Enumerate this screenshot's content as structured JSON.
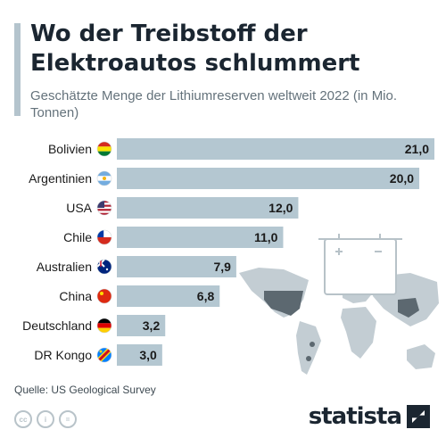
{
  "title": "Wo der Treibstoff der Elektroautos schlummert",
  "subtitle": "Geschätzte Menge der Lithiumreserven weltweit 2022 (in Mio. Tonnen)",
  "source": "Quelle: US Geological Survey",
  "brand": "statista",
  "license_icons": [
    "cc-icon",
    "person-icon",
    "equals-icon"
  ],
  "license_glyphs": [
    "cc",
    "i",
    "="
  ],
  "colors": {
    "bar": "#b4c7d1",
    "title": "#1b2631",
    "map": "#c3cdd3",
    "map_highlight": "#5c6870"
  },
  "chart_data": {
    "type": "bar",
    "orientation": "horizontal",
    "title": "Wo der Treibstoff der Elektroautos schlummert",
    "subtitle": "Geschätzte Menge der Lithiumreserven weltweit 2022 (in Mio. Tonnen)",
    "categories": [
      "Bolivien",
      "Argentinien",
      "USA",
      "Chile",
      "Australien",
      "China",
      "Deutschland",
      "DR Kongo"
    ],
    "values": [
      21.0,
      20.0,
      12.0,
      11.0,
      7.9,
      6.8,
      3.2,
      3.0
    ],
    "value_labels": [
      "21,0",
      "20,0",
      "12,0",
      "11,0",
      "7,9",
      "6,8",
      "3,2",
      "3,0"
    ],
    "flags": [
      "bolivia-flag-icon",
      "argentina-flag-icon",
      "usa-flag-icon",
      "chile-flag-icon",
      "australia-flag-icon",
      "china-flag-icon",
      "germany-flag-icon",
      "dr-congo-flag-icon"
    ],
    "xlim": [
      0,
      21
    ],
    "grid": false,
    "legend": "none"
  }
}
